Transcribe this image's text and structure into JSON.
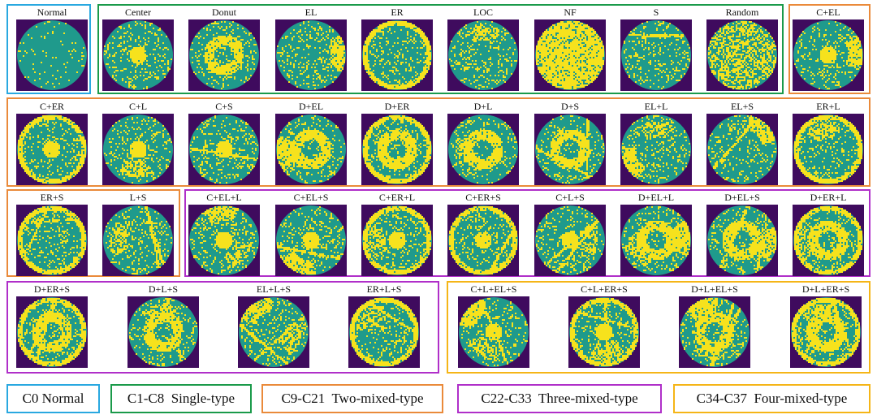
{
  "colors": {
    "background": "#ffffff",
    "wafer_bg": "#3f0b5e",
    "wafer_base": "#1f9a8c",
    "defect": "#f6e21d"
  },
  "groups": [
    {
      "id": "c0",
      "color": "#29a8e0",
      "legend": "C0 Normal"
    },
    {
      "id": "c1",
      "color": "#1a9a4a",
      "legend": "C1-C8  Single-type"
    },
    {
      "id": "c9",
      "color": "#ea8a3a",
      "legend": "C9-C21  Two-mixed-type"
    },
    {
      "id": "c22",
      "color": "#b02fc9",
      "legend": "C22-C33  Three-mixed-type"
    },
    {
      "id": "c34",
      "color": "#f5b517",
      "legend": "C34-C37  Four-mixed-type"
    }
  ],
  "wafers": [
    {
      "label": "Normal",
      "group": "c0",
      "pattern": "normal"
    },
    {
      "label": "Center",
      "group": "c1",
      "pattern": "c"
    },
    {
      "label": "Donut",
      "group": "c1",
      "pattern": "d"
    },
    {
      "label": "EL",
      "group": "c1",
      "pattern": "el"
    },
    {
      "label": "ER",
      "group": "c1",
      "pattern": "er"
    },
    {
      "label": "LOC",
      "group": "c1",
      "pattern": "loc"
    },
    {
      "label": "NF",
      "group": "c1",
      "pattern": "nf"
    },
    {
      "label": "S",
      "group": "c1",
      "pattern": "s"
    },
    {
      "label": "Random",
      "group": "c1",
      "pattern": "random"
    },
    {
      "label": "C+EL",
      "group": "c9",
      "pattern": "c+el"
    },
    {
      "label": "C+ER",
      "group": "c9",
      "pattern": "c+er"
    },
    {
      "label": "C+L",
      "group": "c9",
      "pattern": "c+l"
    },
    {
      "label": "C+S",
      "group": "c9",
      "pattern": "c+s"
    },
    {
      "label": "D+EL",
      "group": "c9",
      "pattern": "d+el"
    },
    {
      "label": "D+ER",
      "group": "c9",
      "pattern": "d+er"
    },
    {
      "label": "D+L",
      "group": "c9",
      "pattern": "d+l"
    },
    {
      "label": "D+S",
      "group": "c9",
      "pattern": "d+s"
    },
    {
      "label": "EL+L",
      "group": "c9",
      "pattern": "el+l"
    },
    {
      "label": "EL+S",
      "group": "c9",
      "pattern": "el+s"
    },
    {
      "label": "ER+L",
      "group": "c9",
      "pattern": "er+l"
    },
    {
      "label": "ER+S",
      "group": "c9",
      "pattern": "er+s"
    },
    {
      "label": "L+S",
      "group": "c9",
      "pattern": "l+s"
    },
    {
      "label": "C+EL+L",
      "group": "c22",
      "pattern": "c+el+l"
    },
    {
      "label": "C+EL+S",
      "group": "c22",
      "pattern": "c+el+s"
    },
    {
      "label": "C+ER+L",
      "group": "c22",
      "pattern": "c+er+l"
    },
    {
      "label": "C+ER+S",
      "group": "c22",
      "pattern": "c+er+s"
    },
    {
      "label": "C+L+S",
      "group": "c22",
      "pattern": "c+l+s"
    },
    {
      "label": "D+EL+L",
      "group": "c22",
      "pattern": "d+el+l"
    },
    {
      "label": "D+EL+S",
      "group": "c22",
      "pattern": "d+el+s"
    },
    {
      "label": "D+ER+L",
      "group": "c22",
      "pattern": "d+er+l"
    },
    {
      "label": "D+ER+S",
      "group": "c22",
      "pattern": "d+er+s"
    },
    {
      "label": "D+L+S",
      "group": "c22",
      "pattern": "d+l+s"
    },
    {
      "label": "EL+L+S",
      "group": "c22",
      "pattern": "el+l+s"
    },
    {
      "label": "ER+L+S",
      "group": "c22",
      "pattern": "er+l+s"
    },
    {
      "label": "C+L+EL+S",
      "group": "c34",
      "pattern": "c+l+el+s"
    },
    {
      "label": "C+L+ER+S",
      "group": "c34",
      "pattern": "c+l+er+s"
    },
    {
      "label": "D+L+EL+S",
      "group": "c34",
      "pattern": "d+l+el+s"
    },
    {
      "label": "D+L+ER+S",
      "group": "c34",
      "pattern": "d+l+er+s"
    }
  ]
}
